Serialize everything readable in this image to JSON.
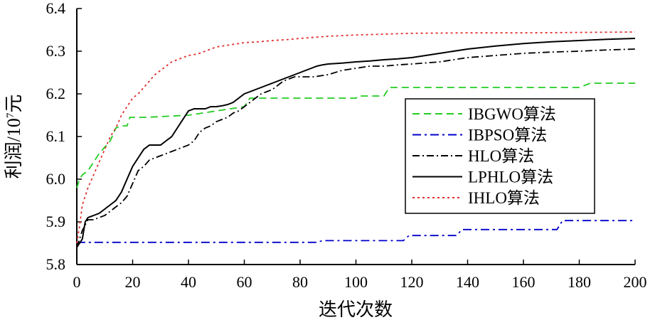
{
  "chart_data": {
    "type": "line",
    "xlabel": "迭代次数",
    "ylabel_main": "利润/10",
    "ylabel_sup": "7",
    "ylabel_unit": "元",
    "xlim": [
      0,
      200
    ],
    "ylim": [
      5.8,
      6.4
    ],
    "xticks": [
      0,
      20,
      40,
      60,
      80,
      100,
      120,
      140,
      160,
      180,
      200
    ],
    "yticks": [
      5.8,
      5.9,
      6.0,
      6.1,
      6.2,
      6.3,
      6.4
    ],
    "ytick_labels": [
      "5.8",
      "5.9",
      "6.0",
      "6.1",
      "6.2",
      "6.3",
      "6.4"
    ],
    "grid": false,
    "legend_position": "right",
    "series": [
      {
        "name": "IBGWO算法",
        "color": "#22cc22",
        "dash": "10,6",
        "points": [
          [
            0,
            5.98
          ],
          [
            1,
            6.0
          ],
          [
            2,
            6.01
          ],
          [
            4,
            6.02
          ],
          [
            6,
            6.04
          ],
          [
            8,
            6.06
          ],
          [
            10,
            6.075
          ],
          [
            12,
            6.09
          ],
          [
            14,
            6.12
          ],
          [
            16,
            6.125
          ],
          [
            18,
            6.125
          ],
          [
            19,
            6.145
          ],
          [
            25,
            6.145
          ],
          [
            40,
            6.15
          ],
          [
            60,
            6.17
          ],
          [
            62,
            6.19
          ],
          [
            80,
            6.19
          ],
          [
            100,
            6.19
          ],
          [
            101,
            6.195
          ],
          [
            110,
            6.195
          ],
          [
            112,
            6.215
          ],
          [
            140,
            6.215
          ],
          [
            160,
            6.215
          ],
          [
            180,
            6.215
          ],
          [
            184,
            6.225
          ],
          [
            200,
            6.225
          ]
        ]
      },
      {
        "name": "IBPSO算法",
        "color": "#0000cc",
        "dash": "12,5,3,5",
        "points": [
          [
            0,
            5.85
          ],
          [
            1,
            5.852
          ],
          [
            20,
            5.852
          ],
          [
            40,
            5.852
          ],
          [
            60,
            5.852
          ],
          [
            80,
            5.852
          ],
          [
            86,
            5.852
          ],
          [
            88,
            5.856
          ],
          [
            100,
            5.856
          ],
          [
            117,
            5.856
          ],
          [
            119,
            5.868
          ],
          [
            136,
            5.868
          ],
          [
            138,
            5.882
          ],
          [
            160,
            5.882
          ],
          [
            172,
            5.882
          ],
          [
            174,
            5.903
          ],
          [
            200,
            5.903
          ]
        ]
      },
      {
        "name": "HLO算法",
        "color": "#000000",
        "dash": "10,4,2,4",
        "points": [
          [
            0,
            5.84
          ],
          [
            2,
            5.88
          ],
          [
            4,
            5.905
          ],
          [
            6,
            5.905
          ],
          [
            8,
            5.91
          ],
          [
            10,
            5.915
          ],
          [
            12,
            5.925
          ],
          [
            14,
            5.935
          ],
          [
            16,
            5.945
          ],
          [
            18,
            5.96
          ],
          [
            20,
            5.99
          ],
          [
            22,
            6.02
          ],
          [
            24,
            6.03
          ],
          [
            26,
            6.045
          ],
          [
            28,
            6.05
          ],
          [
            30,
            6.055
          ],
          [
            32,
            6.06
          ],
          [
            34,
            6.065
          ],
          [
            36,
            6.07
          ],
          [
            38,
            6.075
          ],
          [
            40,
            6.08
          ],
          [
            42,
            6.09
          ],
          [
            44,
            6.11
          ],
          [
            46,
            6.12
          ],
          [
            48,
            6.125
          ],
          [
            50,
            6.135
          ],
          [
            52,
            6.14
          ],
          [
            54,
            6.145
          ],
          [
            56,
            6.155
          ],
          [
            58,
            6.16
          ],
          [
            60,
            6.17
          ],
          [
            62,
            6.18
          ],
          [
            64,
            6.19
          ],
          [
            66,
            6.2
          ],
          [
            68,
            6.205
          ],
          [
            70,
            6.21
          ],
          [
            72,
            6.22
          ],
          [
            74,
            6.23
          ],
          [
            76,
            6.235
          ],
          [
            78,
            6.24
          ],
          [
            80,
            6.24
          ],
          [
            85,
            6.24
          ],
          [
            90,
            6.245
          ],
          [
            95,
            6.255
          ],
          [
            100,
            6.26
          ],
          [
            105,
            6.265
          ],
          [
            110,
            6.265
          ],
          [
            115,
            6.268
          ],
          [
            120,
            6.27
          ],
          [
            130,
            6.275
          ],
          [
            140,
            6.285
          ],
          [
            150,
            6.29
          ],
          [
            160,
            6.295
          ],
          [
            170,
            6.298
          ],
          [
            180,
            6.3
          ],
          [
            190,
            6.303
          ],
          [
            200,
            6.305
          ]
        ]
      },
      {
        "name": "LPHLO算法",
        "color": "#000000",
        "dash": "",
        "points": [
          [
            0,
            5.84
          ],
          [
            2,
            5.86
          ],
          [
            3,
            5.9
          ],
          [
            4,
            5.91
          ],
          [
            6,
            5.915
          ],
          [
            8,
            5.92
          ],
          [
            10,
            5.93
          ],
          [
            12,
            5.94
          ],
          [
            14,
            5.95
          ],
          [
            16,
            5.97
          ],
          [
            18,
            6.0
          ],
          [
            20,
            6.03
          ],
          [
            22,
            6.05
          ],
          [
            24,
            6.07
          ],
          [
            26,
            6.08
          ],
          [
            28,
            6.08
          ],
          [
            30,
            6.08
          ],
          [
            32,
            6.09
          ],
          [
            34,
            6.1
          ],
          [
            36,
            6.12
          ],
          [
            38,
            6.14
          ],
          [
            40,
            6.16
          ],
          [
            42,
            6.165
          ],
          [
            44,
            6.165
          ],
          [
            46,
            6.165
          ],
          [
            48,
            6.17
          ],
          [
            50,
            6.17
          ],
          [
            52,
            6.172
          ],
          [
            54,
            6.175
          ],
          [
            56,
            6.18
          ],
          [
            58,
            6.19
          ],
          [
            60,
            6.2
          ],
          [
            62,
            6.205
          ],
          [
            64,
            6.21
          ],
          [
            66,
            6.215
          ],
          [
            68,
            6.22
          ],
          [
            70,
            6.225
          ],
          [
            72,
            6.23
          ],
          [
            74,
            6.235
          ],
          [
            76,
            6.24
          ],
          [
            78,
            6.245
          ],
          [
            80,
            6.25
          ],
          [
            82,
            6.255
          ],
          [
            84,
            6.26
          ],
          [
            86,
            6.265
          ],
          [
            88,
            6.268
          ],
          [
            90,
            6.27
          ],
          [
            95,
            6.272
          ],
          [
            100,
            6.275
          ],
          [
            105,
            6.277
          ],
          [
            110,
            6.28
          ],
          [
            115,
            6.282
          ],
          [
            120,
            6.285
          ],
          [
            125,
            6.29
          ],
          [
            130,
            6.295
          ],
          [
            140,
            6.305
          ],
          [
            150,
            6.312
          ],
          [
            160,
            6.318
          ],
          [
            170,
            6.322
          ],
          [
            180,
            6.325
          ],
          [
            190,
            6.328
          ],
          [
            200,
            6.33
          ]
        ]
      },
      {
        "name": "IHLO算法",
        "color": "#e03030",
        "dash": "3,4",
        "points": [
          [
            0,
            5.85
          ],
          [
            1,
            5.89
          ],
          [
            2,
            5.94
          ],
          [
            3,
            5.96
          ],
          [
            4,
            5.98
          ],
          [
            6,
            6.01
          ],
          [
            8,
            6.04
          ],
          [
            10,
            6.07
          ],
          [
            12,
            6.1
          ],
          [
            14,
            6.12
          ],
          [
            16,
            6.15
          ],
          [
            18,
            6.17
          ],
          [
            20,
            6.19
          ],
          [
            22,
            6.2
          ],
          [
            24,
            6.215
          ],
          [
            26,
            6.23
          ],
          [
            28,
            6.245
          ],
          [
            30,
            6.255
          ],
          [
            32,
            6.265
          ],
          [
            34,
            6.275
          ],
          [
            36,
            6.28
          ],
          [
            38,
            6.285
          ],
          [
            40,
            6.29
          ],
          [
            42,
            6.292
          ],
          [
            44,
            6.295
          ],
          [
            46,
            6.3
          ],
          [
            48,
            6.305
          ],
          [
            50,
            6.31
          ],
          [
            55,
            6.315
          ],
          [
            60,
            6.32
          ],
          [
            65,
            6.322
          ],
          [
            70,
            6.325
          ],
          [
            75,
            6.327
          ],
          [
            80,
            6.33
          ],
          [
            90,
            6.335
          ],
          [
            100,
            6.338
          ],
          [
            110,
            6.34
          ],
          [
            120,
            6.342
          ],
          [
            140,
            6.343
          ],
          [
            160,
            6.343
          ],
          [
            180,
            6.344
          ],
          [
            200,
            6.345
          ]
        ]
      }
    ]
  }
}
